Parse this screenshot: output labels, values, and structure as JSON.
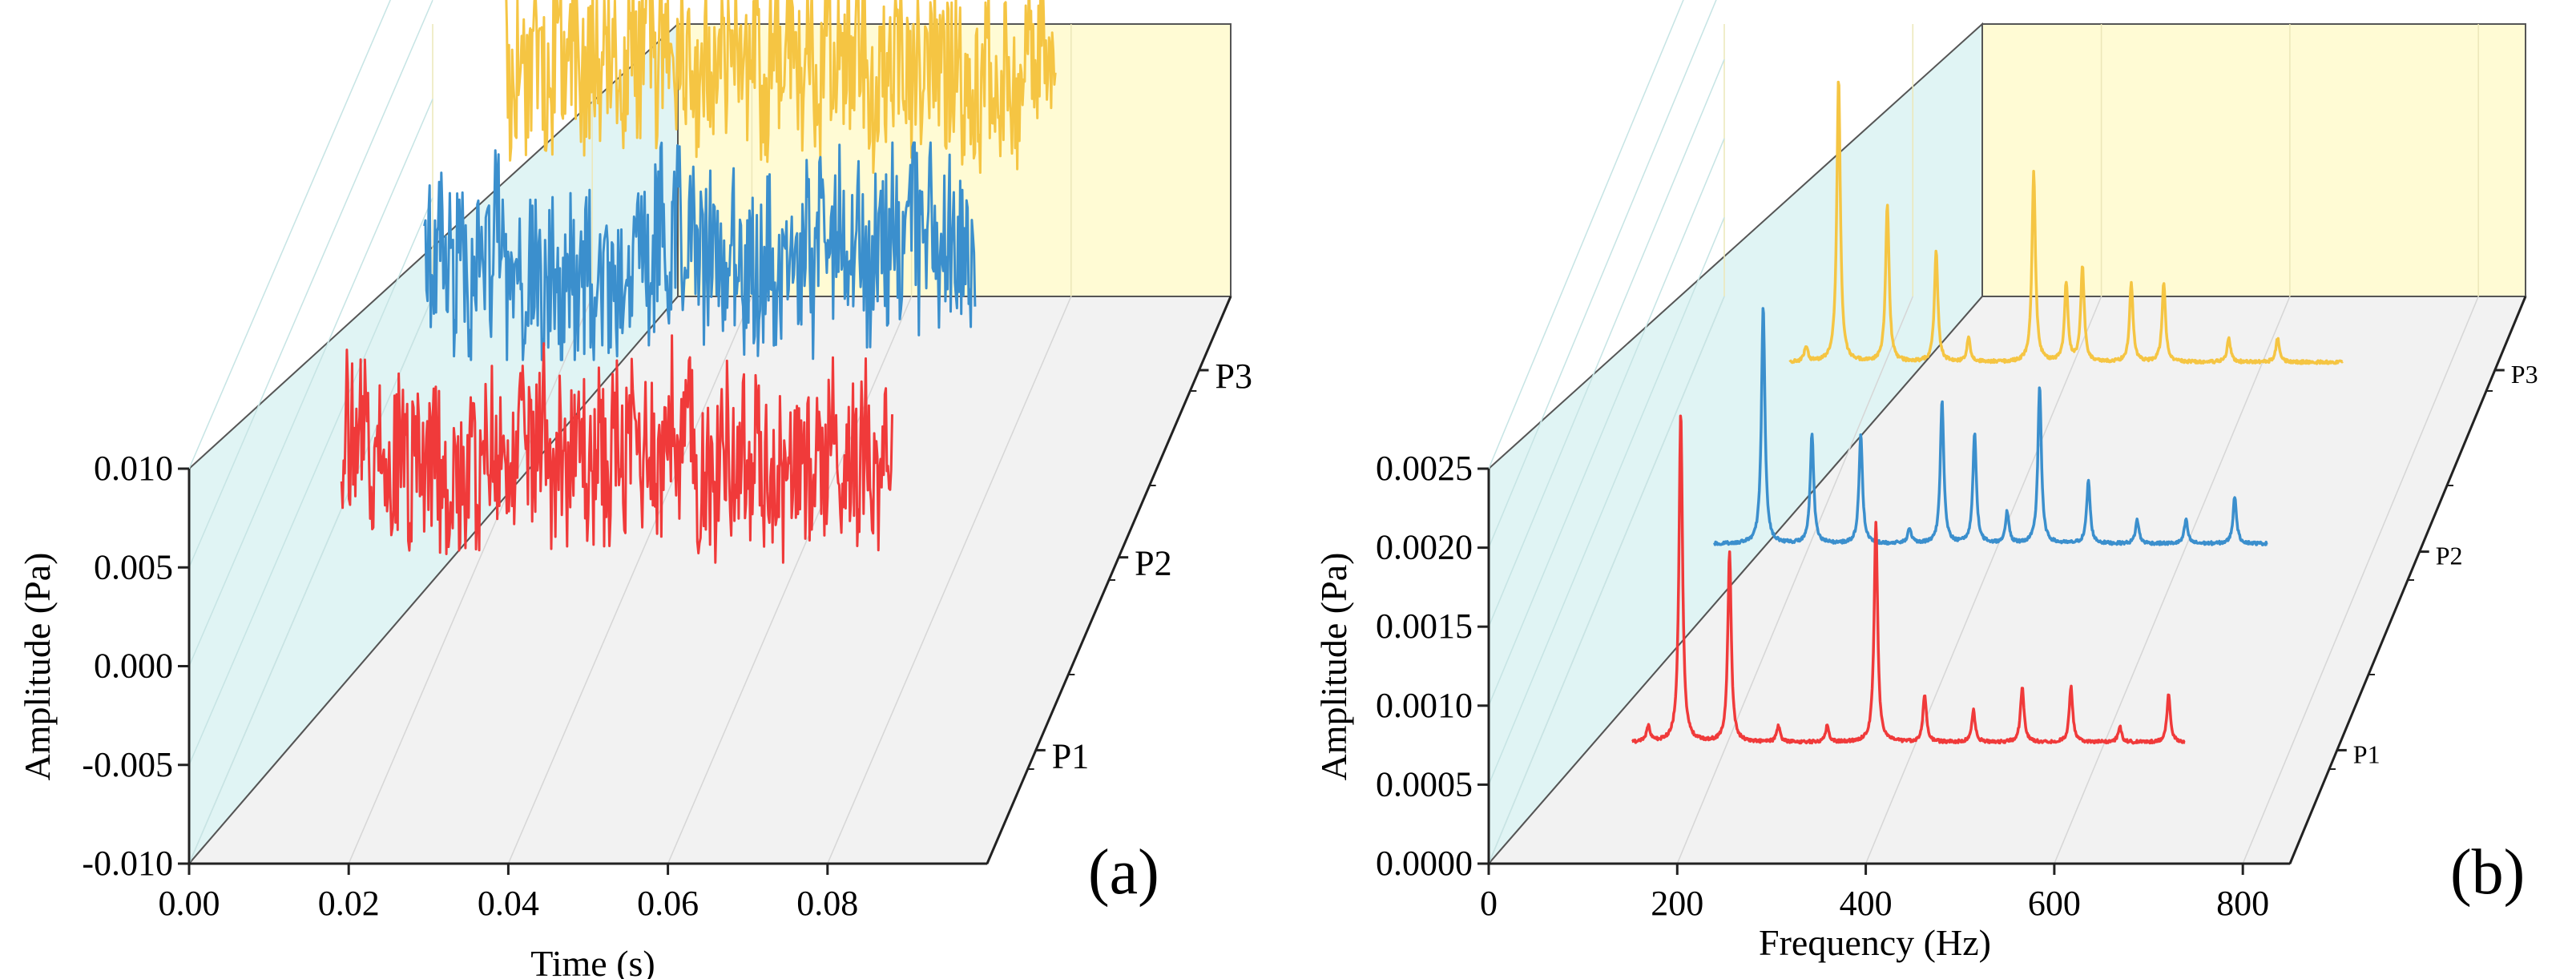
{
  "chart_data": [
    {
      "id": "a",
      "type": "line",
      "panel_label": "(a)",
      "xlabel": "Time (s)",
      "ylabel": "Amplitude (Pa)",
      "xlim": [
        0.0,
        0.1
      ],
      "ylim": [
        -0.01,
        0.01
      ],
      "x_ticks": [
        "0.00",
        "0.02",
        "0.04",
        "0.06",
        "0.08"
      ],
      "y_ticks": [
        "-0.010",
        "-0.005",
        "0.000",
        "0.005",
        "0.010"
      ],
      "depth_categories": [
        "P1",
        "P2",
        "P3"
      ],
      "series": [
        {
          "name": "P1",
          "color": "#f03a3a",
          "t_range": [
            0.0,
            0.1
          ],
          "mean": 0.0055,
          "amplitude_range": [
            -0.0005,
            0.011
          ]
        },
        {
          "name": "P2",
          "color": "#3b8fcd",
          "t_range": [
            0.0,
            0.1
          ],
          "mean": 0.0055,
          "amplitude_range": [
            0.0,
            0.011
          ]
        },
        {
          "name": "P3",
          "color": "#f5c543",
          "t_range": [
            0.0,
            0.1
          ],
          "mean": 0.0055,
          "amplitude_range": [
            0.0,
            0.01
          ]
        }
      ],
      "grid": true
    },
    {
      "id": "b",
      "type": "line",
      "panel_label": "(b)",
      "xlabel": "Frequency (Hz)",
      "ylabel": "Amplitude (Pa)",
      "xlim": [
        0,
        850
      ],
      "ylim": [
        0.0,
        0.0025
      ],
      "x_ticks": [
        "0",
        "200",
        "400",
        "600",
        "800"
      ],
      "y_ticks": [
        "0.0000",
        "0.0005",
        "0.0010",
        "0.0015",
        "0.0020",
        "0.0025"
      ],
      "depth_categories": [
        "P1",
        "P2",
        "P3"
      ],
      "series": [
        {
          "name": "P1",
          "color": "#f03a3a",
          "baseline": 5e-05,
          "peaks": [
            [
              25,
              0.0001
            ],
            [
              75,
              0.0021
            ],
            [
              150,
              0.0012
            ],
            [
              225,
              0.0001
            ],
            [
              300,
              0.0001
            ],
            [
              375,
              0.0014
            ],
            [
              450,
              0.0003
            ],
            [
              525,
              0.0002
            ],
            [
              600,
              0.00035
            ],
            [
              675,
              0.00035
            ],
            [
              750,
              0.0001
            ],
            [
              825,
              0.0003
            ]
          ]
        },
        {
          "name": "P2",
          "color": "#3b8fcd",
          "baseline": 5e-05,
          "peaks": [
            [
              75,
              0.0015
            ],
            [
              150,
              0.0007
            ],
            [
              225,
              0.0007
            ],
            [
              300,
              0.0001
            ],
            [
              350,
              0.0009
            ],
            [
              400,
              0.0007
            ],
            [
              450,
              0.0002
            ],
            [
              500,
              0.001
            ],
            [
              575,
              0.0004
            ],
            [
              650,
              0.00015
            ],
            [
              725,
              0.00015
            ],
            [
              800,
              0.0003
            ]
          ]
        },
        {
          "name": "P3",
          "color": "#f5c543",
          "baseline": 5e-05,
          "peaks": [
            [
              25,
              0.0001
            ],
            [
              75,
              0.0018
            ],
            [
              150,
              0.001
            ],
            [
              225,
              0.0007
            ],
            [
              275,
              0.00015
            ],
            [
              375,
              0.0012
            ],
            [
              425,
              0.0005
            ],
            [
              450,
              0.0006
            ],
            [
              525,
              0.0005
            ],
            [
              575,
              0.0005
            ],
            [
              675,
              0.00015
            ],
            [
              750,
              0.00015
            ]
          ]
        }
      ],
      "grid": true
    }
  ]
}
